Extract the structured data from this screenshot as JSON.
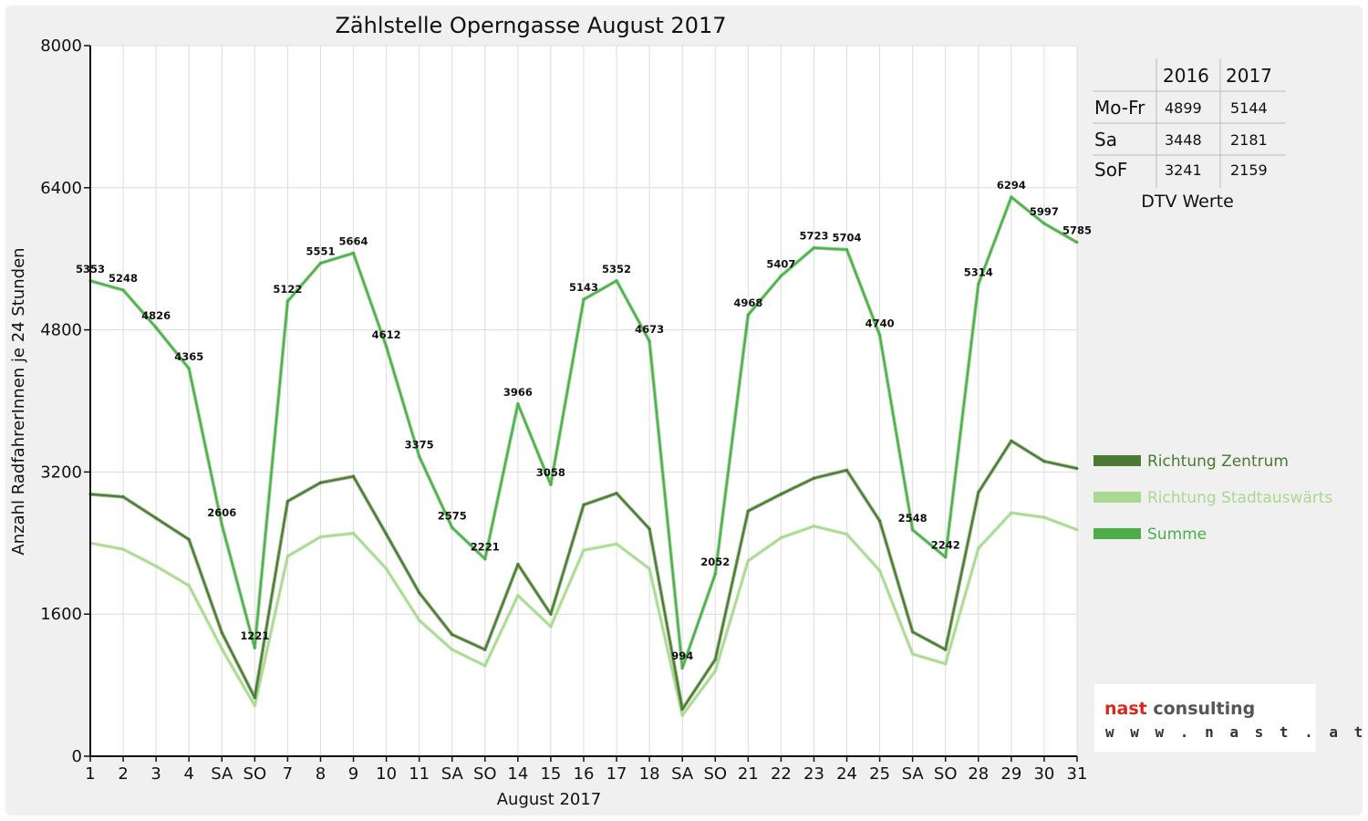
{
  "chart_data": {
    "type": "line",
    "title": "Zählstelle Operngasse August 2017",
    "xlabel": "August 2017",
    "ylabel": "Anzahl RadfahrerInnen je 24 Stunden",
    "ylim": [
      0,
      8000
    ],
    "yticks": [
      "0",
      "1600",
      "3200",
      "4800",
      "6400",
      "8000"
    ],
    "grid": true,
    "categories": [
      "1",
      "2",
      "3",
      "4",
      "SA",
      "SO",
      "7",
      "8",
      "9",
      "10",
      "11",
      "SA",
      "SO",
      "14",
      "15",
      "16",
      "17",
      "18",
      "SA",
      "SO",
      "21",
      "22",
      "23",
      "24",
      "25",
      "SA",
      "SO",
      "28",
      "29",
      "30",
      "31"
    ],
    "highlight_categories": [
      "SO",
      "15"
    ],
    "series": [
      {
        "name": "Richtung Zentrum",
        "color": "#4a7a32",
        "values": [
          2950,
          2920,
          2680,
          2440,
          1390,
          660,
          2870,
          3080,
          3150,
          2500,
          1840,
          1370,
          1200,
          2160,
          1600,
          2830,
          2960,
          2560,
          530,
          1090,
          2760,
          2950,
          3130,
          3220,
          2650,
          1400,
          1200,
          2970,
          3550,
          3320,
          3240
        ]
      },
      {
        "name": "Richtung Stadtauswärts",
        "color": "#a9d890",
        "values": [
          2400,
          2330,
          2140,
          1920,
          1210,
          570,
          2250,
          2470,
          2510,
          2110,
          1530,
          1200,
          1020,
          1810,
          1460,
          2320,
          2390,
          2110,
          460,
          960,
          2200,
          2460,
          2590,
          2500,
          2090,
          1150,
          1040,
          2340,
          2740,
          2690,
          2550
        ]
      },
      {
        "name": "Summe",
        "color": "#4cae48",
        "values": [
          5353,
          5248,
          4826,
          4365,
          2606,
          1221,
          5122,
          5551,
          5664,
          4612,
          3375,
          2575,
          2221,
          3966,
          3058,
          5143,
          5352,
          4673,
          994,
          2052,
          4968,
          5407,
          5723,
          5704,
          4740,
          2548,
          2242,
          5314,
          6294,
          5997,
          5785
        ]
      }
    ],
    "legend_position": "right",
    "dtv_table": {
      "caption": "DTV Werte",
      "columns": [
        "",
        "2016",
        "2017"
      ],
      "rows": [
        [
          "Mo-Fr",
          "4899",
          "5144"
        ],
        [
          "Sa",
          "3448",
          "2181"
        ],
        [
          "SoF",
          "3241",
          "2159"
        ]
      ]
    }
  },
  "logo": {
    "name_part1": "nast",
    "name_part2": " consulting",
    "url": "w w w . n a s t . a t",
    "color_part1": "#d42a1c",
    "color_part2": "#555555"
  },
  "colors": {
    "highlight": "#e00000",
    "grid": "#ffffff",
    "frame_bg": "#f0f0f0",
    "plot_bg": "#ffffff"
  }
}
